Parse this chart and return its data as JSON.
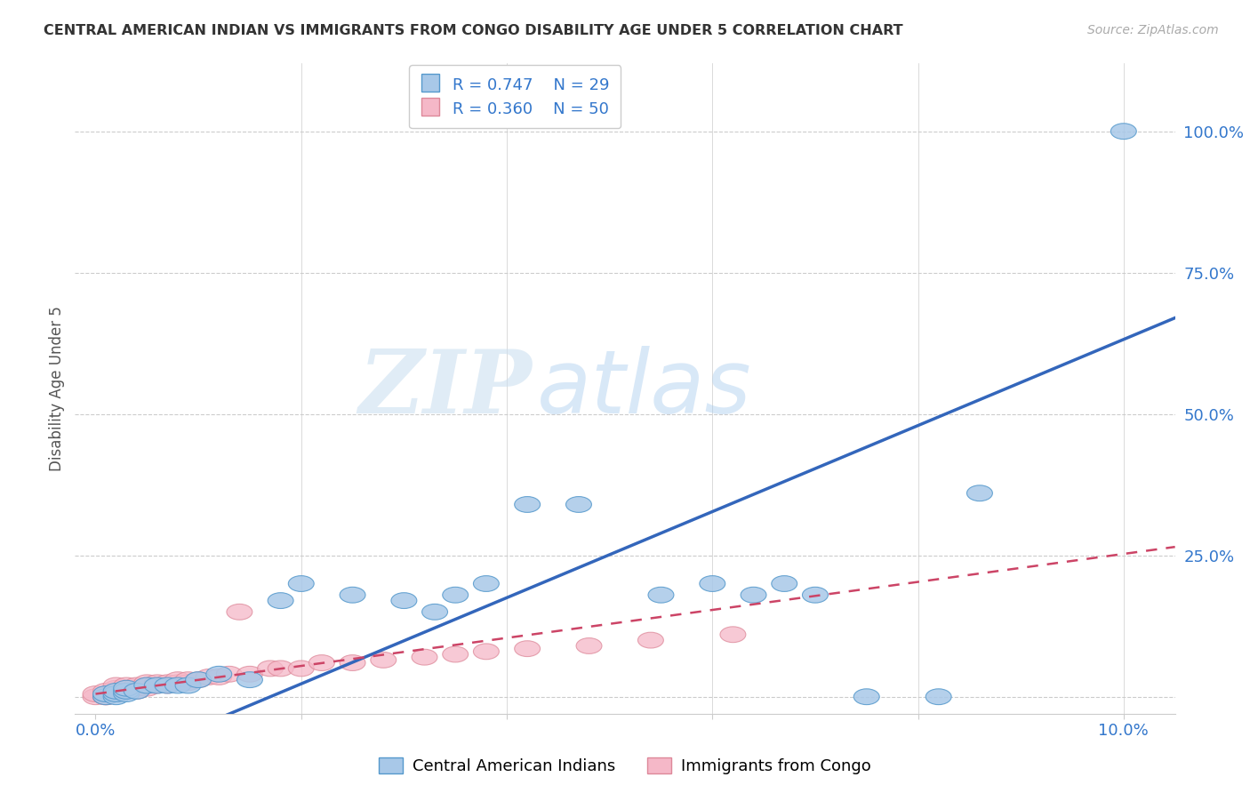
{
  "title": "CENTRAL AMERICAN INDIAN VS IMMIGRANTS FROM CONGO DISABILITY AGE UNDER 5 CORRELATION CHART",
  "source": "Source: ZipAtlas.com",
  "ylabel": "Disability Age Under 5",
  "x_ticks": [
    0.0,
    0.02,
    0.04,
    0.06,
    0.08,
    0.1
  ],
  "x_tick_labels": [
    "0.0%",
    "",
    "",
    "",
    "",
    "10.0%"
  ],
  "y_ticks": [
    0.0,
    0.25,
    0.5,
    0.75,
    1.0
  ],
  "y_tick_labels": [
    "",
    "25.0%",
    "50.0%",
    "75.0%",
    "100.0%"
  ],
  "xlim": [
    -0.002,
    0.105
  ],
  "ylim": [
    -0.03,
    1.12
  ],
  "legend_label1": "Central American Indians",
  "legend_label2": "Immigrants from Congo",
  "blue_color": "#a8c8e8",
  "blue_edge_color": "#5599cc",
  "blue_line_color": "#3366bb",
  "pink_color": "#f5b8c8",
  "pink_edge_color": "#dd8899",
  "pink_line_color": "#cc4466",
  "watermark_zip": "ZIP",
  "watermark_atlas": "atlas",
  "blue_scatter_x": [
    0.001,
    0.001,
    0.002,
    0.002,
    0.002,
    0.003,
    0.003,
    0.003,
    0.004,
    0.005,
    0.006,
    0.007,
    0.008,
    0.009,
    0.01,
    0.012,
    0.015,
    0.018,
    0.02,
    0.025,
    0.03,
    0.033,
    0.035,
    0.038,
    0.042,
    0.047,
    0.055,
    0.06,
    0.064,
    0.067,
    0.07,
    0.075,
    0.082,
    0.086,
    0.1
  ],
  "blue_scatter_y": [
    0.0,
    0.005,
    0.0,
    0.005,
    0.01,
    0.005,
    0.01,
    0.015,
    0.01,
    0.02,
    0.02,
    0.02,
    0.02,
    0.02,
    0.03,
    0.04,
    0.03,
    0.17,
    0.2,
    0.18,
    0.17,
    0.15,
    0.18,
    0.2,
    0.34,
    0.34,
    0.18,
    0.2,
    0.18,
    0.2,
    0.18,
    0.0,
    0.0,
    0.36,
    1.0
  ],
  "pink_scatter_x": [
    0.0,
    0.0,
    0.001,
    0.001,
    0.001,
    0.001,
    0.001,
    0.002,
    0.002,
    0.002,
    0.002,
    0.002,
    0.002,
    0.003,
    0.003,
    0.003,
    0.003,
    0.004,
    0.004,
    0.004,
    0.005,
    0.005,
    0.005,
    0.006,
    0.006,
    0.007,
    0.007,
    0.008,
    0.008,
    0.009,
    0.009,
    0.01,
    0.011,
    0.012,
    0.013,
    0.014,
    0.015,
    0.017,
    0.018,
    0.02,
    0.022,
    0.025,
    0.028,
    0.032,
    0.035,
    0.038,
    0.042,
    0.048,
    0.054,
    0.062
  ],
  "pink_scatter_y": [
    0.0,
    0.005,
    0.0,
    0.0,
    0.0,
    0.005,
    0.01,
    0.005,
    0.01,
    0.01,
    0.01,
    0.015,
    0.02,
    0.01,
    0.01,
    0.015,
    0.02,
    0.01,
    0.015,
    0.02,
    0.015,
    0.02,
    0.025,
    0.02,
    0.025,
    0.02,
    0.025,
    0.025,
    0.03,
    0.025,
    0.03,
    0.03,
    0.035,
    0.035,
    0.04,
    0.15,
    0.04,
    0.05,
    0.05,
    0.05,
    0.06,
    0.06,
    0.065,
    0.07,
    0.075,
    0.08,
    0.085,
    0.09,
    0.1,
    0.11
  ],
  "blue_line_x0": 0.0,
  "blue_line_y0": -0.05,
  "blue_line_x1": 0.105,
  "blue_line_y1": 0.68,
  "pink_line_x0": 0.0,
  "pink_line_y0": 0.005,
  "pink_line_x1": 0.105,
  "pink_line_y1": 0.265
}
